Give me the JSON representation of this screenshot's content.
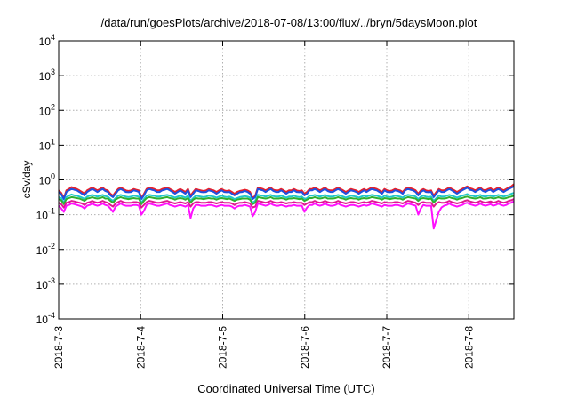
{
  "chart_data": {
    "type": "line",
    "title": "/data/run/goesPlots/archive/2018-07-08/13:00/flux/../bryn/5daysMoon.plot",
    "xlabel": "Coordinated Universal Time (UTC)",
    "ylabel": "cSv/day",
    "y_scale": "log",
    "ylim": [
      0.0001,
      10000
    ],
    "y_ticks": [
      {
        "value": 0.0001,
        "base": "10",
        "exp": "-4"
      },
      {
        "value": 0.001,
        "base": "10",
        "exp": "-3"
      },
      {
        "value": 0.01,
        "base": "10",
        "exp": "-2"
      },
      {
        "value": 0.1,
        "base": "10",
        "exp": "-1"
      },
      {
        "value": 1,
        "base": "10",
        "exp": "0"
      },
      {
        "value": 10,
        "base": "10",
        "exp": "1"
      },
      {
        "value": 100,
        "base": "10",
        "exp": "2"
      },
      {
        "value": 1000,
        "base": "10",
        "exp": "3"
      },
      {
        "value": 10000,
        "base": "10",
        "exp": "4"
      }
    ],
    "x_ticks": [
      "2018-7-3",
      "2018-7-4",
      "2018-7-5",
      "2018-7-6",
      "2018-7-7",
      "2018-7-8"
    ],
    "xlim": [
      0,
      5.55
    ],
    "grid": true,
    "legend": "none",
    "series": [
      {
        "color": "#e8202a",
        "values": [
          0.5,
          0.42,
          0.3,
          0.5,
          0.55,
          0.62,
          0.58,
          0.55,
          0.5,
          0.45,
          0.4,
          0.5,
          0.55,
          0.6,
          0.55,
          0.5,
          0.55,
          0.6,
          0.52,
          0.5,
          0.4,
          0.35,
          0.45,
          0.55,
          0.6,
          0.55,
          0.5,
          0.48,
          0.5,
          0.55,
          0.52,
          0.5,
          0.3,
          0.4,
          0.55,
          0.6,
          0.58,
          0.55,
          0.5,
          0.5,
          0.55,
          0.58,
          0.6,
          0.55,
          0.5,
          0.45,
          0.5,
          0.55,
          0.5,
          0.45,
          0.55,
          0.35,
          0.45,
          0.55,
          0.52,
          0.5,
          0.48,
          0.5,
          0.55,
          0.52,
          0.5,
          0.45,
          0.5,
          0.55,
          0.5,
          0.48,
          0.5,
          0.45,
          0.4,
          0.45,
          0.48,
          0.5,
          0.52,
          0.5,
          0.45,
          0.3,
          0.35,
          0.6,
          0.58,
          0.55,
          0.5,
          0.55,
          0.6,
          0.52,
          0.5,
          0.5,
          0.55,
          0.5,
          0.45,
          0.5,
          0.5,
          0.55,
          0.5,
          0.48,
          0.5,
          0.4,
          0.45,
          0.55,
          0.55,
          0.6,
          0.55,
          0.5,
          0.55,
          0.6,
          0.52,
          0.5,
          0.5,
          0.55,
          0.6,
          0.55,
          0.5,
          0.45,
          0.5,
          0.55,
          0.52,
          0.5,
          0.45,
          0.5,
          0.55,
          0.5,
          0.55,
          0.6,
          0.58,
          0.55,
          0.5,
          0.45,
          0.55,
          0.5,
          0.48,
          0.5,
          0.55,
          0.52,
          0.5,
          0.45,
          0.55,
          0.6,
          0.58,
          0.55,
          0.5,
          0.4,
          0.5,
          0.55,
          0.5,
          0.48,
          0.5,
          0.35,
          0.45,
          0.55,
          0.5,
          0.5,
          0.55,
          0.6,
          0.55,
          0.5,
          0.45,
          0.5,
          0.55,
          0.6,
          0.65,
          0.58,
          0.55,
          0.5,
          0.55,
          0.6,
          0.52,
          0.5,
          0.55,
          0.58,
          0.5,
          0.55,
          0.6,
          0.55,
          0.5,
          0.55,
          0.6,
          0.65,
          0.75
        ]
      },
      {
        "color": "#2050e0",
        "values": [
          0.45,
          0.38,
          0.28,
          0.45,
          0.5,
          0.55,
          0.52,
          0.5,
          0.45,
          0.4,
          0.36,
          0.45,
          0.5,
          0.55,
          0.5,
          0.45,
          0.5,
          0.55,
          0.48,
          0.45,
          0.36,
          0.32,
          0.4,
          0.5,
          0.55,
          0.5,
          0.45,
          0.44,
          0.45,
          0.5,
          0.48,
          0.45,
          0.28,
          0.36,
          0.5,
          0.55,
          0.52,
          0.5,
          0.45,
          0.45,
          0.5,
          0.52,
          0.55,
          0.5,
          0.45,
          0.4,
          0.45,
          0.5,
          0.45,
          0.4,
          0.5,
          0.32,
          0.4,
          0.5,
          0.48,
          0.45,
          0.44,
          0.45,
          0.5,
          0.48,
          0.45,
          0.4,
          0.45,
          0.5,
          0.45,
          0.44,
          0.45,
          0.4,
          0.36,
          0.4,
          0.44,
          0.45,
          0.48,
          0.45,
          0.4,
          0.28,
          0.32,
          0.55,
          0.52,
          0.5,
          0.45,
          0.5,
          0.55,
          0.48,
          0.45,
          0.45,
          0.5,
          0.45,
          0.4,
          0.45,
          0.45,
          0.5,
          0.45,
          0.44,
          0.45,
          0.36,
          0.4,
          0.5,
          0.5,
          0.55,
          0.5,
          0.45,
          0.5,
          0.55,
          0.48,
          0.45,
          0.45,
          0.5,
          0.55,
          0.5,
          0.45,
          0.4,
          0.45,
          0.5,
          0.48,
          0.45,
          0.4,
          0.45,
          0.5,
          0.45,
          0.5,
          0.55,
          0.52,
          0.5,
          0.45,
          0.4,
          0.5,
          0.45,
          0.44,
          0.45,
          0.5,
          0.48,
          0.45,
          0.4,
          0.5,
          0.55,
          0.52,
          0.5,
          0.45,
          0.36,
          0.45,
          0.5,
          0.45,
          0.44,
          0.45,
          0.32,
          0.4,
          0.5,
          0.45,
          0.45,
          0.5,
          0.55,
          0.5,
          0.45,
          0.4,
          0.45,
          0.5,
          0.55,
          0.6,
          0.52,
          0.5,
          0.45,
          0.5,
          0.55,
          0.48,
          0.45,
          0.5,
          0.52,
          0.45,
          0.5,
          0.55,
          0.5,
          0.45,
          0.5,
          0.55,
          0.6,
          0.65
        ]
      },
      {
        "color": "#20c8c8",
        "values": [
          0.32,
          0.3,
          0.22,
          0.32,
          0.35,
          0.38,
          0.36,
          0.35,
          0.33,
          0.31,
          0.28,
          0.33,
          0.35,
          0.37,
          0.35,
          0.33,
          0.35,
          0.37,
          0.34,
          0.33,
          0.28,
          0.25,
          0.3,
          0.35,
          0.37,
          0.35,
          0.33,
          0.32,
          0.33,
          0.35,
          0.34,
          0.33,
          0.22,
          0.28,
          0.35,
          0.37,
          0.36,
          0.35,
          0.33,
          0.33,
          0.35,
          0.36,
          0.37,
          0.35,
          0.33,
          0.31,
          0.33,
          0.35,
          0.33,
          0.31,
          0.35,
          0.25,
          0.3,
          0.35,
          0.34,
          0.33,
          0.32,
          0.33,
          0.35,
          0.34,
          0.33,
          0.31,
          0.33,
          0.35,
          0.33,
          0.32,
          0.33,
          0.31,
          0.28,
          0.3,
          0.32,
          0.33,
          0.34,
          0.33,
          0.31,
          0.22,
          0.25,
          0.37,
          0.36,
          0.35,
          0.33,
          0.35,
          0.37,
          0.34,
          0.33,
          0.33,
          0.35,
          0.33,
          0.31,
          0.33,
          0.33,
          0.35,
          0.33,
          0.32,
          0.33,
          0.28,
          0.3,
          0.35,
          0.35,
          0.37,
          0.35,
          0.33,
          0.35,
          0.37,
          0.34,
          0.33,
          0.33,
          0.35,
          0.37,
          0.35,
          0.33,
          0.31,
          0.33,
          0.35,
          0.34,
          0.33,
          0.31,
          0.33,
          0.35,
          0.33,
          0.35,
          0.37,
          0.36,
          0.35,
          0.33,
          0.31,
          0.35,
          0.33,
          0.32,
          0.33,
          0.35,
          0.34,
          0.33,
          0.31,
          0.35,
          0.37,
          0.36,
          0.35,
          0.33,
          0.28,
          0.33,
          0.35,
          0.33,
          0.32,
          0.33,
          0.25,
          0.3,
          0.35,
          0.33,
          0.33,
          0.35,
          0.37,
          0.35,
          0.33,
          0.31,
          0.33,
          0.35,
          0.37,
          0.39,
          0.36,
          0.35,
          0.33,
          0.35,
          0.37,
          0.34,
          0.33,
          0.35,
          0.36,
          0.33,
          0.35,
          0.37,
          0.35,
          0.33,
          0.35,
          0.37,
          0.4,
          0.42
        ]
      },
      {
        "color": "#30b030",
        "values": [
          0.28,
          0.26,
          0.2,
          0.28,
          0.3,
          0.32,
          0.31,
          0.3,
          0.29,
          0.27,
          0.25,
          0.29,
          0.3,
          0.32,
          0.3,
          0.29,
          0.3,
          0.32,
          0.29,
          0.29,
          0.25,
          0.22,
          0.27,
          0.3,
          0.32,
          0.3,
          0.29,
          0.28,
          0.29,
          0.3,
          0.29,
          0.29,
          0.2,
          0.25,
          0.3,
          0.32,
          0.31,
          0.3,
          0.29,
          0.29,
          0.3,
          0.31,
          0.32,
          0.3,
          0.29,
          0.27,
          0.29,
          0.3,
          0.29,
          0.27,
          0.3,
          0.22,
          0.27,
          0.3,
          0.29,
          0.29,
          0.28,
          0.29,
          0.3,
          0.29,
          0.29,
          0.27,
          0.29,
          0.3,
          0.29,
          0.28,
          0.29,
          0.27,
          0.25,
          0.27,
          0.28,
          0.29,
          0.29,
          0.29,
          0.27,
          0.2,
          0.22,
          0.32,
          0.31,
          0.3,
          0.29,
          0.3,
          0.32,
          0.29,
          0.29,
          0.29,
          0.3,
          0.29,
          0.27,
          0.29,
          0.29,
          0.3,
          0.29,
          0.28,
          0.29,
          0.25,
          0.27,
          0.3,
          0.3,
          0.32,
          0.3,
          0.29,
          0.3,
          0.32,
          0.29,
          0.29,
          0.29,
          0.3,
          0.32,
          0.3,
          0.29,
          0.27,
          0.29,
          0.3,
          0.29,
          0.29,
          0.27,
          0.29,
          0.3,
          0.29,
          0.3,
          0.32,
          0.31,
          0.3,
          0.29,
          0.27,
          0.3,
          0.29,
          0.28,
          0.29,
          0.3,
          0.29,
          0.29,
          0.27,
          0.3,
          0.32,
          0.31,
          0.3,
          0.29,
          0.25,
          0.29,
          0.3,
          0.29,
          0.28,
          0.29,
          0.22,
          0.27,
          0.3,
          0.29,
          0.29,
          0.3,
          0.32,
          0.3,
          0.29,
          0.27,
          0.29,
          0.3,
          0.32,
          0.33,
          0.31,
          0.3,
          0.29,
          0.3,
          0.32,
          0.29,
          0.29,
          0.3,
          0.31,
          0.29,
          0.3,
          0.32,
          0.3,
          0.29,
          0.3,
          0.32,
          0.33,
          0.35
        ]
      },
      {
        "color": "#e01890",
        "values": [
          0.22,
          0.2,
          0.16,
          0.22,
          0.23,
          0.25,
          0.24,
          0.23,
          0.22,
          0.21,
          0.19,
          0.22,
          0.23,
          0.25,
          0.23,
          0.22,
          0.23,
          0.25,
          0.23,
          0.22,
          0.19,
          0.17,
          0.21,
          0.23,
          0.25,
          0.23,
          0.22,
          0.22,
          0.22,
          0.23,
          0.23,
          0.22,
          0.16,
          0.19,
          0.23,
          0.25,
          0.24,
          0.23,
          0.22,
          0.22,
          0.23,
          0.24,
          0.25,
          0.23,
          0.22,
          0.21,
          0.22,
          0.23,
          0.22,
          0.21,
          0.23,
          0.17,
          0.21,
          0.23,
          0.23,
          0.22,
          0.22,
          0.22,
          0.23,
          0.23,
          0.22,
          0.21,
          0.22,
          0.23,
          0.22,
          0.22,
          0.22,
          0.21,
          0.19,
          0.21,
          0.22,
          0.22,
          0.23,
          0.22,
          0.21,
          0.16,
          0.17,
          0.25,
          0.24,
          0.23,
          0.22,
          0.23,
          0.25,
          0.23,
          0.22,
          0.22,
          0.23,
          0.22,
          0.21,
          0.22,
          0.22,
          0.23,
          0.22,
          0.22,
          0.22,
          0.19,
          0.21,
          0.23,
          0.23,
          0.25,
          0.23,
          0.22,
          0.23,
          0.25,
          0.23,
          0.22,
          0.22,
          0.23,
          0.25,
          0.23,
          0.22,
          0.21,
          0.22,
          0.23,
          0.23,
          0.22,
          0.21,
          0.22,
          0.23,
          0.22,
          0.23,
          0.25,
          0.24,
          0.23,
          0.22,
          0.21,
          0.23,
          0.22,
          0.22,
          0.22,
          0.23,
          0.23,
          0.22,
          0.21,
          0.23,
          0.25,
          0.24,
          0.23,
          0.22,
          0.19,
          0.22,
          0.23,
          0.22,
          0.22,
          0.22,
          0.17,
          0.21,
          0.23,
          0.22,
          0.22,
          0.23,
          0.25,
          0.23,
          0.22,
          0.21,
          0.22,
          0.23,
          0.25,
          0.26,
          0.24,
          0.23,
          0.22,
          0.23,
          0.25,
          0.23,
          0.22,
          0.23,
          0.24,
          0.22,
          0.23,
          0.25,
          0.23,
          0.22,
          0.23,
          0.25,
          0.26,
          0.28
        ]
      },
      {
        "color": "#ff10ff",
        "values": [
          0.18,
          0.15,
          0.12,
          0.18,
          0.19,
          0.21,
          0.2,
          0.19,
          0.18,
          0.17,
          0.15,
          0.18,
          0.19,
          0.21,
          0.19,
          0.18,
          0.19,
          0.21,
          0.19,
          0.18,
          0.15,
          0.12,
          0.17,
          0.19,
          0.21,
          0.19,
          0.18,
          0.18,
          0.18,
          0.19,
          0.19,
          0.18,
          0.1,
          0.13,
          0.19,
          0.21,
          0.2,
          0.19,
          0.18,
          0.18,
          0.19,
          0.2,
          0.21,
          0.19,
          0.18,
          0.17,
          0.18,
          0.19,
          0.18,
          0.17,
          0.19,
          0.08,
          0.15,
          0.19,
          0.19,
          0.18,
          0.18,
          0.18,
          0.19,
          0.19,
          0.18,
          0.17,
          0.18,
          0.19,
          0.18,
          0.18,
          0.18,
          0.17,
          0.15,
          0.17,
          0.18,
          0.18,
          0.19,
          0.18,
          0.17,
          0.09,
          0.12,
          0.21,
          0.2,
          0.19,
          0.18,
          0.19,
          0.21,
          0.19,
          0.18,
          0.18,
          0.19,
          0.18,
          0.17,
          0.18,
          0.18,
          0.19,
          0.18,
          0.18,
          0.18,
          0.12,
          0.16,
          0.19,
          0.19,
          0.21,
          0.19,
          0.18,
          0.19,
          0.21,
          0.19,
          0.18,
          0.18,
          0.19,
          0.21,
          0.19,
          0.18,
          0.17,
          0.18,
          0.19,
          0.19,
          0.18,
          0.17,
          0.18,
          0.19,
          0.18,
          0.19,
          0.21,
          0.2,
          0.19,
          0.18,
          0.17,
          0.19,
          0.18,
          0.18,
          0.18,
          0.19,
          0.19,
          0.18,
          0.17,
          0.19,
          0.21,
          0.2,
          0.19,
          0.18,
          0.1,
          0.15,
          0.19,
          0.18,
          0.18,
          0.18,
          0.04,
          0.07,
          0.12,
          0.16,
          0.18,
          0.19,
          0.21,
          0.19,
          0.18,
          0.17,
          0.18,
          0.19,
          0.21,
          0.22,
          0.2,
          0.19,
          0.18,
          0.19,
          0.21,
          0.19,
          0.18,
          0.19,
          0.2,
          0.18,
          0.19,
          0.21,
          0.19,
          0.18,
          0.19,
          0.21,
          0.22,
          0.24
        ]
      }
    ]
  }
}
